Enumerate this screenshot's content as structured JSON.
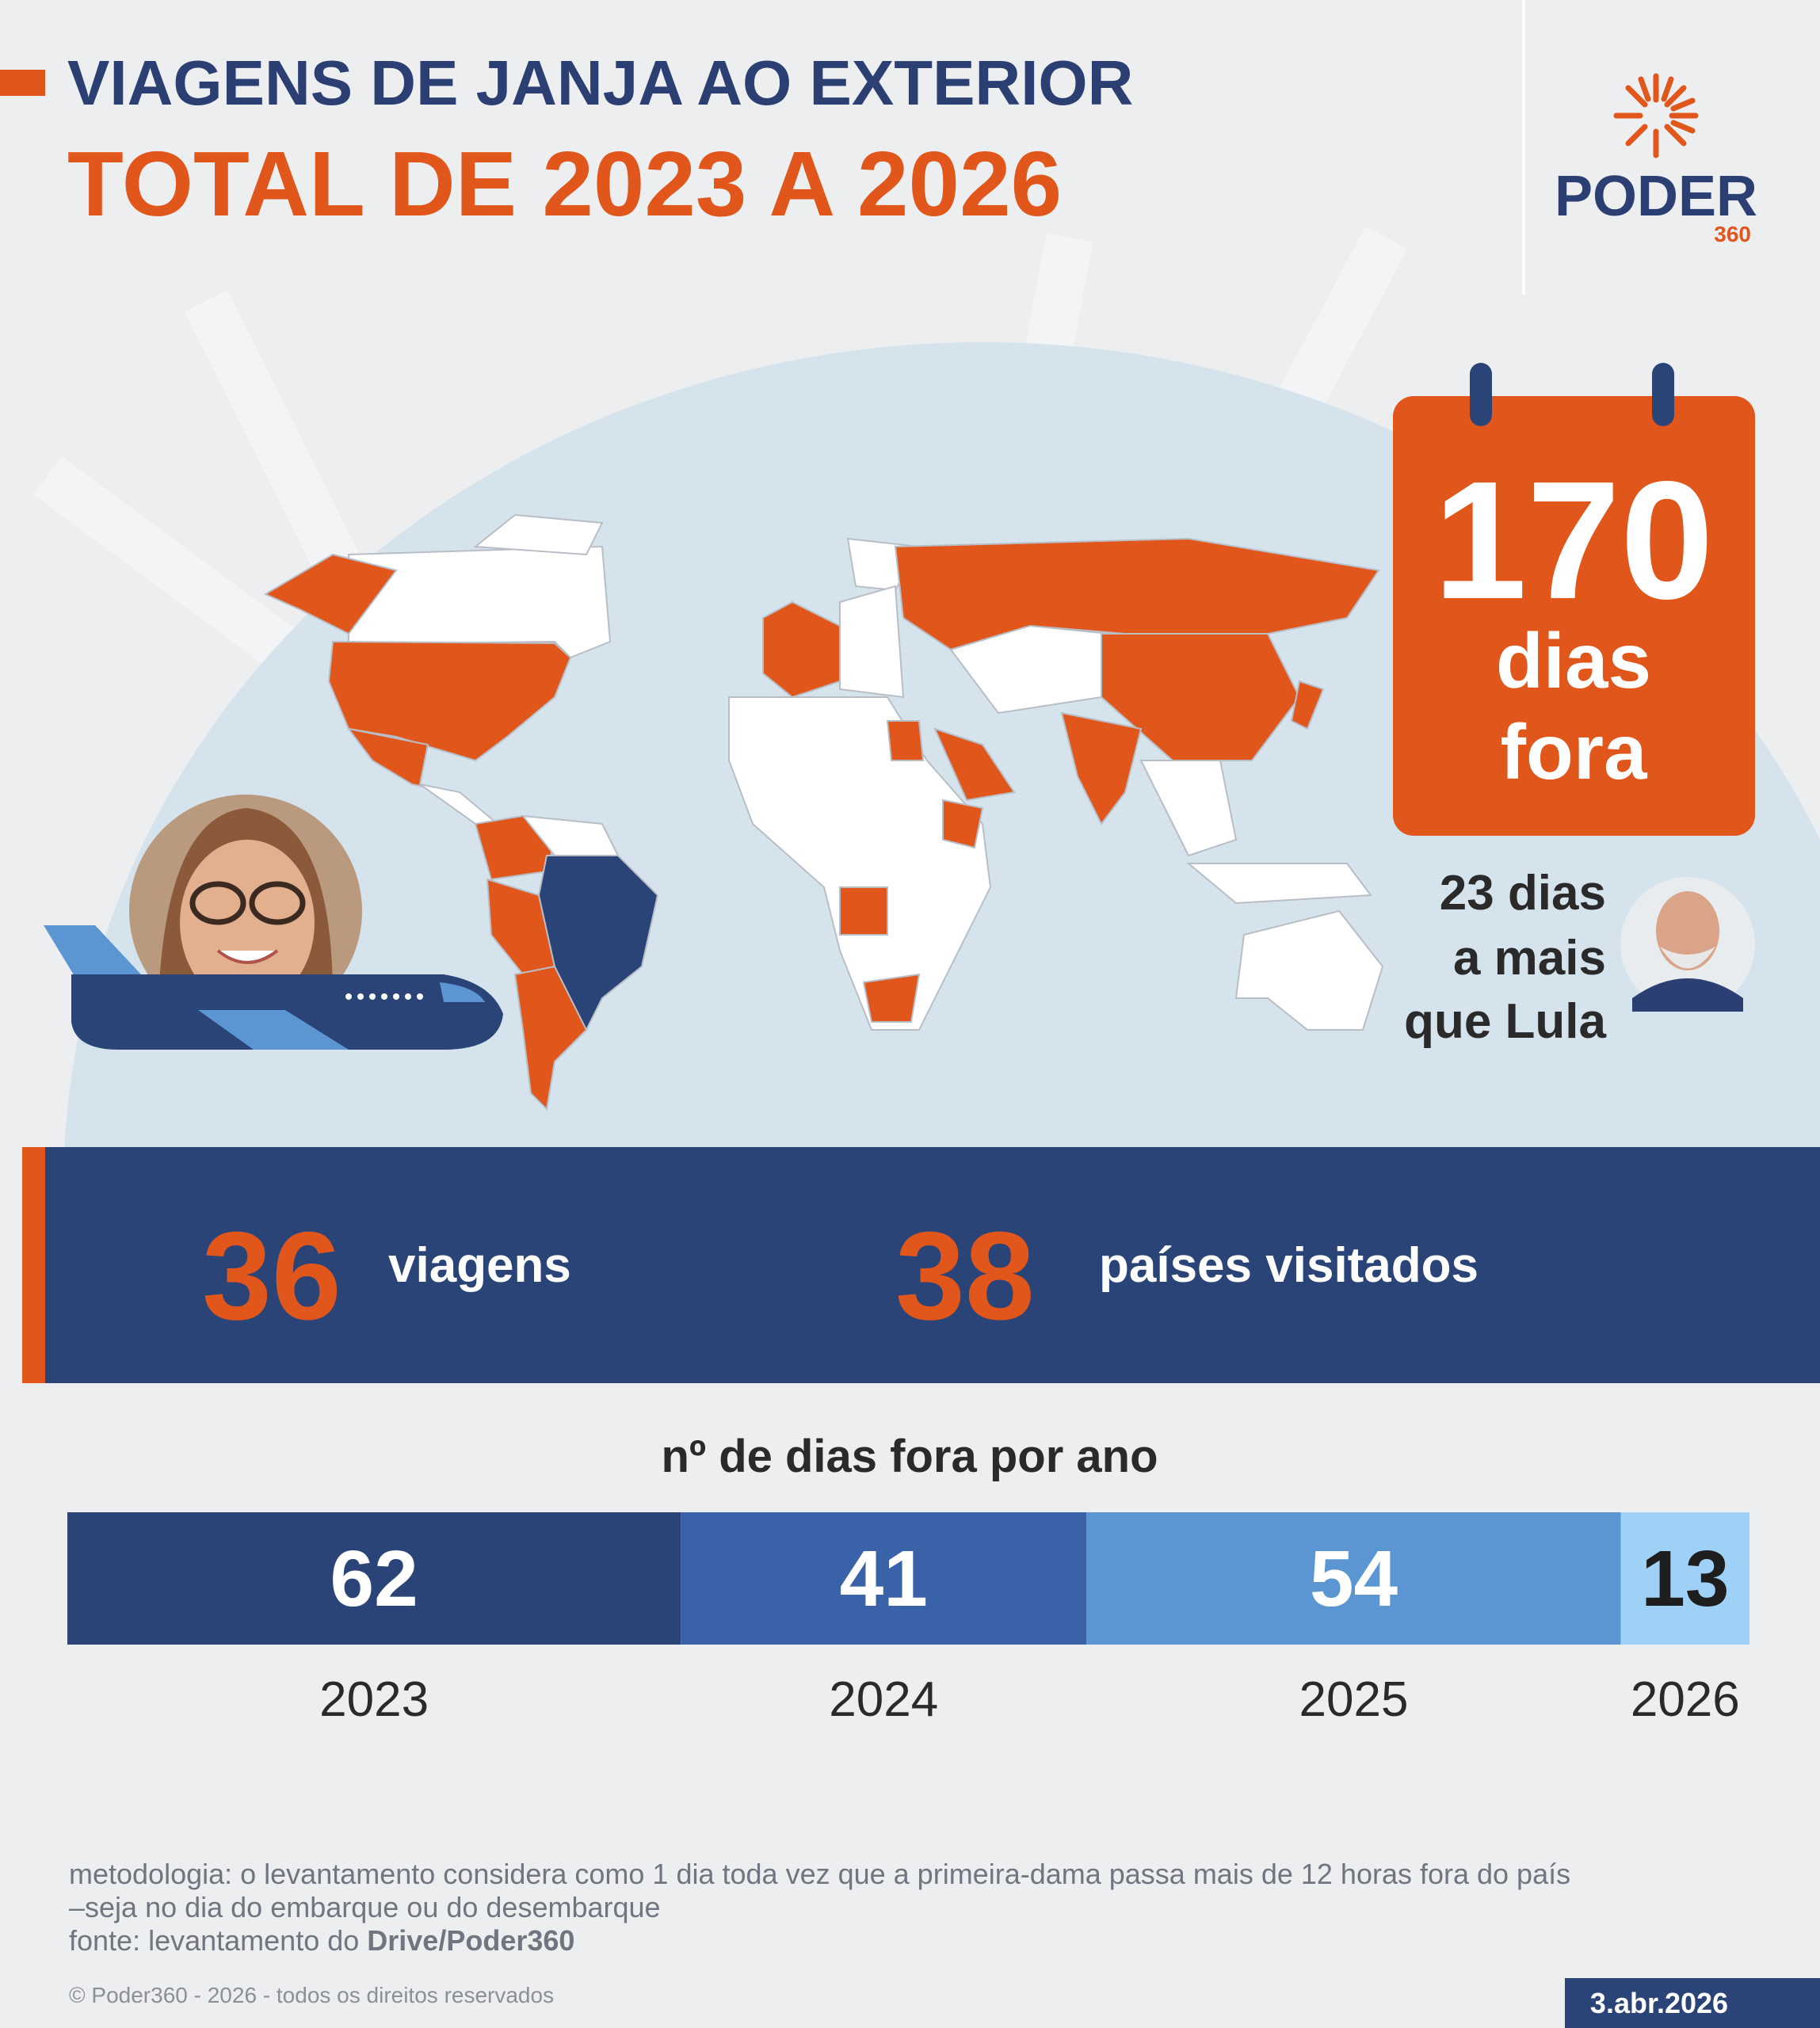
{
  "header": {
    "title": "VIAGENS DE JANJA AO EXTERIOR",
    "subtitle": "TOTAL DE 2023 A 2026"
  },
  "logo": {
    "name": "PODER",
    "suffix": "360"
  },
  "highlight": {
    "value": 170,
    "line1": "dias",
    "line2": "fora"
  },
  "comparison": {
    "lines": [
      "23 dias",
      "a mais",
      "que Lula"
    ]
  },
  "stats": [
    {
      "value": 36,
      "label": "viagens"
    },
    {
      "value": 38,
      "label": "países visitados"
    }
  ],
  "chart_data": {
    "type": "stacked-bar",
    "title": "nº de dias fora por ano",
    "categories": [
      "2023",
      "2024",
      "2025",
      "2026"
    ],
    "values": [
      62,
      41,
      54,
      13
    ],
    "colors": [
      "#2b4478",
      "#3a62a8",
      "#5b96d2",
      "#9fd0f5"
    ],
    "label_colors": [
      "#ffffff",
      "#ffffff",
      "#ffffff",
      "#1e1e1e"
    ]
  },
  "footer": {
    "methodology": [
      "metodologia: o levantamento considera como 1 dia toda vez que a primeira-dama passa mais de 12 horas fora do país",
      "–seja no dia do embarque ou do desembarque"
    ],
    "source_prefix": "fonte: levantamento do",
    "source_bold": "Drive/Poder360",
    "copyright": "© Poder360 - 2026 - todos os direitos reservados",
    "date": "3.abr.2026"
  }
}
